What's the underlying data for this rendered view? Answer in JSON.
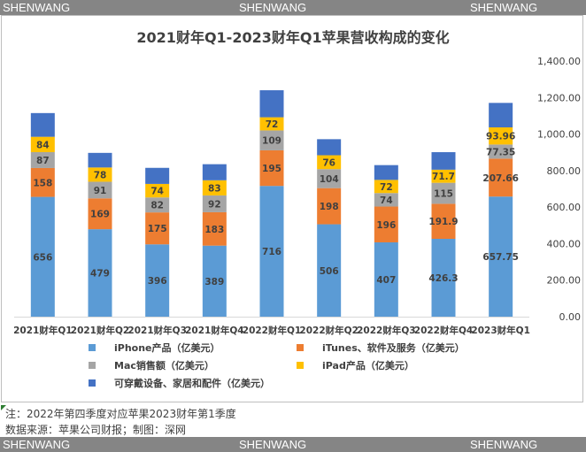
{
  "watermark": {
    "text": "SHENWANG"
  },
  "chart_data": {
    "type": "bar",
    "stacked": true,
    "title": "2021财年Q1-2023财年Q1苹果营收构成的变化",
    "categories": [
      "2021财年Q1",
      "2021财年Q2",
      "2021财年Q3",
      "2021财年Q4",
      "2022财年Q1",
      "2022财年Q2",
      "2022财年Q3",
      "2022财年Q4",
      "2023财年Q1"
    ],
    "series": [
      {
        "name": "iPhone产品（亿美元）",
        "color": "#5b9bd5",
        "values": [
          656,
          479,
          396,
          389,
          716,
          506,
          407,
          426.3,
          657.75
        ],
        "labels": [
          "656",
          "479",
          "396",
          "389",
          "716",
          "506",
          "407",
          "426.3",
          "657.75"
        ]
      },
      {
        "name": "iTunes、软件及服务（亿美元）",
        "color": "#ed7d31",
        "values": [
          158,
          169,
          175,
          183,
          195,
          198,
          196,
          191.9,
          207.66
        ],
        "labels": [
          "158",
          "169",
          "175",
          "183",
          "195",
          "198",
          "196",
          "191.9",
          "207.66"
        ]
      },
      {
        "name": "Mac销售额（亿美元）",
        "color": "#a5a5a5",
        "values": [
          87,
          91,
          82,
          92,
          109,
          104,
          74,
          115,
          77.35
        ],
        "labels": [
          "87",
          "91",
          "82",
          "92",
          "109",
          "104",
          "74",
          "115",
          "77.35"
        ]
      },
      {
        "name": "iPad产品（亿美元）",
        "color": "#ffc000",
        "values": [
          84,
          78,
          74,
          83,
          72,
          76,
          72,
          71.7,
          93.96
        ],
        "labels": [
          "84",
          "78",
          "74",
          "83",
          "72",
          "76",
          "72",
          "71.7",
          "93.96"
        ]
      },
      {
        "name": "可穿戴设备、家居和配件（亿美元）",
        "color": "#4472c4",
        "values": [
          130,
          80,
          88,
          88,
          148,
          88,
          81,
          96,
          134
        ],
        "labels": null
      }
    ],
    "y_axis": {
      "position": "right",
      "min": 0,
      "max": 1400,
      "step": 200,
      "tick_labels": [
        "0.00",
        "200.00",
        "400.00",
        "600.00",
        "800.00",
        "1,000.00",
        "1,200.00",
        "1,400.00"
      ]
    },
    "legend": {
      "position": "bottom",
      "columns": 2
    }
  },
  "notes": {
    "line1": "注：2022年第四季度对应苹果2023财年第1季度",
    "line2": "数据来源：苹果公司财报；制图：深网"
  }
}
